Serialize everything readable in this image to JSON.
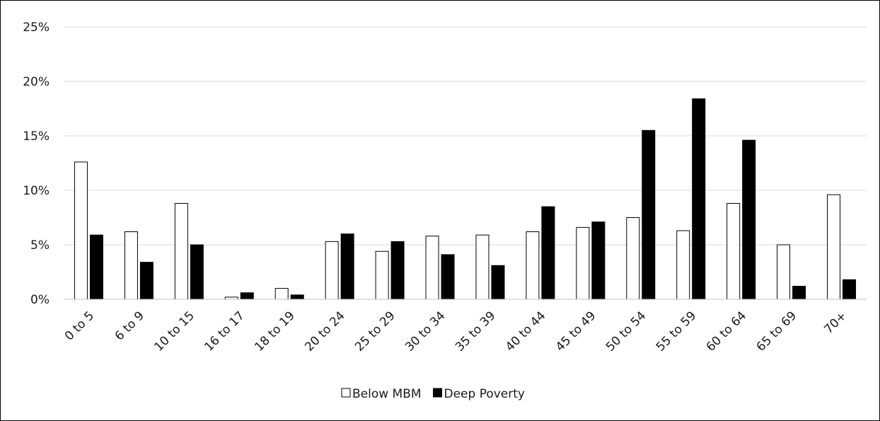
{
  "chart_data": {
    "type": "bar",
    "title": "",
    "xlabel": "",
    "ylabel": "",
    "ylim": [
      0,
      25
    ],
    "y_ticks": [
      0,
      5,
      10,
      15,
      20,
      25
    ],
    "y_tick_labels": [
      "0%",
      "5%",
      "10%",
      "15%",
      "20%",
      "25%"
    ],
    "grid": "horizontal",
    "legend_position": "bottom",
    "categories": [
      "0 to 5",
      "6 to 9",
      "10 to 15",
      "16 to 17",
      "18 to 19",
      "20 to 24",
      "25 to 29",
      "30 to 34",
      "35 to 39",
      "40 to 44",
      "45 to 49",
      "50 to 54",
      "55 to 59",
      "60 to 64",
      "65 to 69",
      "70+"
    ],
    "series": [
      {
        "name": "Below MBM",
        "color": "#ffffff",
        "stroke": "#000000",
        "values": [
          12.6,
          6.2,
          8.8,
          0.2,
          1.0,
          5.3,
          4.4,
          5.8,
          5.9,
          6.2,
          6.6,
          7.5,
          6.3,
          8.8,
          5.0,
          9.6
        ]
      },
      {
        "name": "Deep Poverty",
        "color": "#000000",
        "stroke": "#000000",
        "values": [
          5.9,
          3.4,
          5.0,
          0.6,
          0.4,
          6.0,
          5.3,
          4.1,
          3.1,
          8.5,
          7.1,
          15.5,
          18.4,
          14.6,
          1.2,
          1.8
        ]
      }
    ]
  }
}
